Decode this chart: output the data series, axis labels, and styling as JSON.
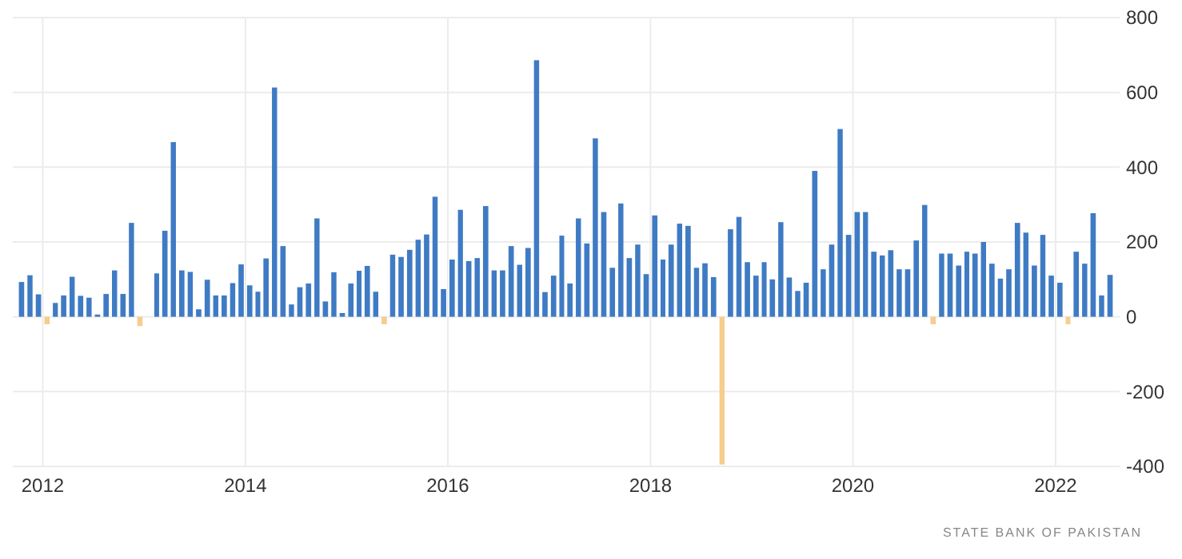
{
  "chart_data": {
    "type": "bar",
    "x": [
      "2011-10",
      "2011-11",
      "2011-12",
      "2012-01",
      "2012-02",
      "2012-03",
      "2012-04",
      "2012-05",
      "2012-06",
      "2012-07",
      "2012-08",
      "2012-09",
      "2012-10",
      "2012-11",
      "2012-12",
      "2013-01",
      "2013-02",
      "2013-03",
      "2013-04",
      "2013-05",
      "2013-06",
      "2013-07",
      "2013-08",
      "2013-09",
      "2013-10",
      "2013-11",
      "2013-12",
      "2014-01",
      "2014-02",
      "2014-03",
      "2014-04",
      "2014-05",
      "2014-06",
      "2014-07",
      "2014-08",
      "2014-09",
      "2014-10",
      "2014-11",
      "2014-12",
      "2015-01",
      "2015-02",
      "2015-03",
      "2015-04",
      "2015-05",
      "2015-06",
      "2015-07",
      "2015-08",
      "2015-09",
      "2015-10",
      "2015-11",
      "2015-12",
      "2016-01",
      "2016-02",
      "2016-03",
      "2016-04",
      "2016-05",
      "2016-06",
      "2016-07",
      "2016-08",
      "2016-09",
      "2016-10",
      "2016-11",
      "2016-12",
      "2017-01",
      "2017-02",
      "2017-03",
      "2017-04",
      "2017-05",
      "2017-06",
      "2017-07",
      "2017-08",
      "2017-09",
      "2017-10",
      "2017-11",
      "2017-12",
      "2018-01",
      "2018-02",
      "2018-03",
      "2018-04",
      "2018-05",
      "2018-06",
      "2018-07",
      "2018-08",
      "2018-09",
      "2018-10",
      "2018-11",
      "2018-12",
      "2019-01",
      "2019-02",
      "2019-03",
      "2019-04",
      "2019-05",
      "2019-06",
      "2019-07",
      "2019-08",
      "2019-09",
      "2019-10",
      "2019-11",
      "2019-12",
      "2020-01",
      "2020-02",
      "2020-03",
      "2020-04",
      "2020-05",
      "2020-06",
      "2020-07",
      "2020-08",
      "2020-09",
      "2020-10",
      "2020-11",
      "2020-12",
      "2021-01",
      "2021-02",
      "2021-03",
      "2021-04",
      "2021-05",
      "2021-06",
      "2021-07",
      "2021-08",
      "2021-09",
      "2021-10",
      "2021-11",
      "2021-12",
      "2022-01",
      "2022-02",
      "2022-03",
      "2022-04",
      "2022-05",
      "2022-06",
      "2022-07"
    ],
    "values": [
      93,
      111,
      60,
      -20,
      37,
      57,
      107,
      56,
      51,
      6,
      61,
      124,
      61,
      251,
      -25,
      0,
      116,
      230,
      467,
      124,
      120,
      20,
      99,
      57,
      57,
      90,
      140,
      84,
      67,
      156,
      613,
      189,
      33,
      79,
      89,
      263,
      41,
      119,
      10,
      89,
      123,
      136,
      67,
      -20,
      166,
      160,
      179,
      206,
      220,
      321,
      74,
      153,
      286,
      149,
      157,
      296,
      124,
      124,
      189,
      139,
      184,
      686,
      66,
      110,
      217,
      89,
      263,
      196,
      477,
      280,
      131,
      303,
      157,
      193,
      114,
      271,
      153,
      193,
      249,
      243,
      131,
      143,
      106,
      -395,
      234,
      267,
      146,
      110,
      146,
      100,
      253,
      105,
      69,
      91,
      390,
      127,
      193,
      502,
      219,
      280,
      280,
      174,
      164,
      178,
      127,
      127,
      204,
      299,
      -20,
      169,
      169,
      137,
      174,
      169,
      200,
      142,
      102,
      127,
      251,
      225,
      137,
      219,
      110,
      91,
      -20,
      174,
      142,
      277,
      57,
      112
    ],
    "colors": [
      "#3f7bc4",
      "#3f7bc4",
      "#3f7bc4",
      "#f6cd8f",
      "#3f7bc4",
      "#3f7bc4",
      "#3f7bc4",
      "#3f7bc4",
      "#3f7bc4",
      "#3f7bc4",
      "#3f7bc4",
      "#3f7bc4",
      "#3f7bc4",
      "#3f7bc4",
      "#f6cd8f",
      "#3f7bc4",
      "#3f7bc4",
      "#3f7bc4",
      "#3f7bc4",
      "#3f7bc4",
      "#3f7bc4",
      "#3f7bc4",
      "#3f7bc4",
      "#3f7bc4",
      "#3f7bc4",
      "#3f7bc4",
      "#3f7bc4",
      "#3f7bc4",
      "#3f7bc4",
      "#3f7bc4",
      "#3f7bc4",
      "#3f7bc4",
      "#3f7bc4",
      "#3f7bc4",
      "#3f7bc4",
      "#3f7bc4",
      "#3f7bc4",
      "#3f7bc4",
      "#3f7bc4",
      "#3f7bc4",
      "#3f7bc4",
      "#3f7bc4",
      "#3f7bc4",
      "#f6cd8f",
      "#3f7bc4",
      "#3f7bc4",
      "#3f7bc4",
      "#3f7bc4",
      "#3f7bc4",
      "#3f7bc4",
      "#3f7bc4",
      "#3f7bc4",
      "#3f7bc4",
      "#3f7bc4",
      "#3f7bc4",
      "#3f7bc4",
      "#3f7bc4",
      "#3f7bc4",
      "#3f7bc4",
      "#3f7bc4",
      "#3f7bc4",
      "#3f7bc4",
      "#3f7bc4",
      "#3f7bc4",
      "#3f7bc4",
      "#3f7bc4",
      "#3f7bc4",
      "#3f7bc4",
      "#3f7bc4",
      "#3f7bc4",
      "#3f7bc4",
      "#3f7bc4",
      "#3f7bc4",
      "#3f7bc4",
      "#3f7bc4",
      "#3f7bc4",
      "#3f7bc4",
      "#3f7bc4",
      "#3f7bc4",
      "#3f7bc4",
      "#3f7bc4",
      "#3f7bc4",
      "#3f7bc4",
      "#f6cd8f",
      "#3f7bc4",
      "#3f7bc4",
      "#3f7bc4",
      "#3f7bc4",
      "#3f7bc4",
      "#3f7bc4",
      "#3f7bc4",
      "#3f7bc4",
      "#3f7bc4",
      "#3f7bc4",
      "#3f7bc4",
      "#3f7bc4",
      "#3f7bc4",
      "#3f7bc4",
      "#3f7bc4",
      "#3f7bc4",
      "#3f7bc4",
      "#3f7bc4",
      "#3f7bc4",
      "#3f7bc4",
      "#3f7bc4",
      "#3f7bc4",
      "#3f7bc4",
      "#3f7bc4",
      "#f6cd8f",
      "#3f7bc4",
      "#3f7bc4",
      "#3f7bc4",
      "#3f7bc4",
      "#3f7bc4",
      "#3f7bc4",
      "#3f7bc4",
      "#3f7bc4",
      "#3f7bc4",
      "#3f7bc4",
      "#3f7bc4",
      "#3f7bc4",
      "#3f7bc4",
      "#3f7bc4",
      "#3f7bc4",
      "#f6cd8f",
      "#3f7bc4",
      "#3f7bc4",
      "#3f7bc4",
      "#3f7bc4",
      "#3f7bc4"
    ],
    "xlim": [
      "2011-09-15",
      "2022-08-20"
    ],
    "xticks": [
      "2012",
      "2014",
      "2016",
      "2018",
      "2020",
      "2022"
    ],
    "ylim": [
      -400,
      800
    ],
    "yticks": [
      -400,
      -200,
      0,
      200,
      400,
      600,
      800
    ],
    "grid": true,
    "annotations": [
      "STATE BANK OF PAKISTAN"
    ]
  }
}
